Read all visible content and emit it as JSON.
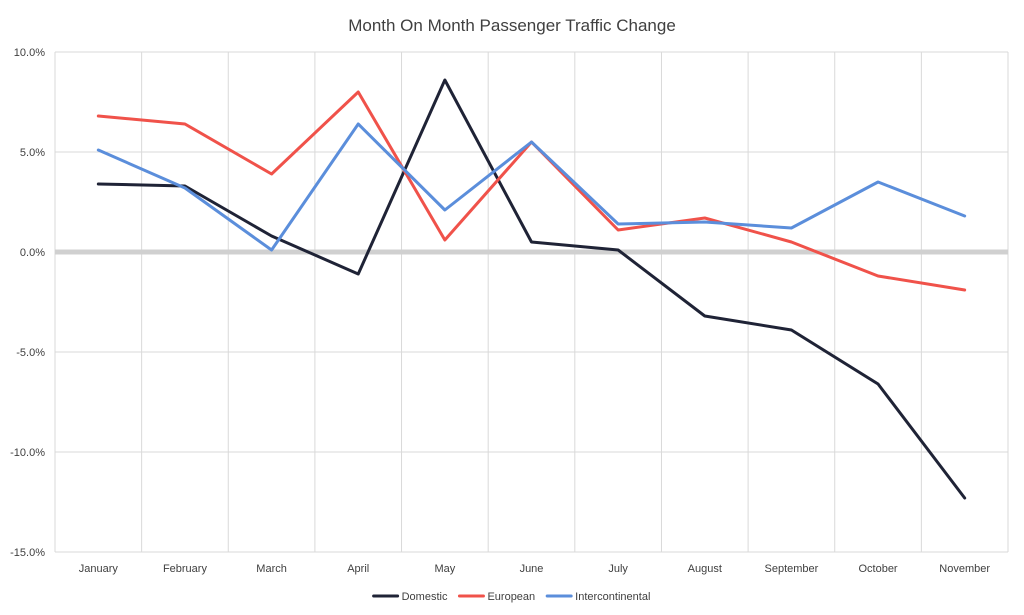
{
  "chart_data": {
    "type": "line",
    "title": "Month On Month Passenger Traffic Change",
    "xlabel": "",
    "ylabel": "",
    "categories": [
      "January",
      "February",
      "March",
      "April",
      "May",
      "June",
      "July",
      "August",
      "September",
      "October",
      "November"
    ],
    "yticks": [
      10,
      5,
      0,
      -5,
      -10,
      -15
    ],
    "ytick_labels": [
      "10.0%",
      "5.0%",
      "0.0%",
      "-5.0%",
      "-10.0%",
      "-15.0%"
    ],
    "ylim": [
      -15,
      10
    ],
    "grid": true,
    "legend_position": "bottom",
    "series": [
      {
        "name": "Domestic",
        "color": "#1f2336",
        "values": [
          3.4,
          3.3,
          0.8,
          -1.1,
          8.6,
          0.5,
          0.1,
          -3.2,
          -3.9,
          -6.6,
          -12.3
        ]
      },
      {
        "name": "European",
        "color": "#f0524a",
        "values": [
          6.8,
          6.4,
          3.9,
          8.0,
          0.6,
          5.5,
          1.1,
          1.7,
          0.5,
          -1.2,
          -1.9
        ]
      },
      {
        "name": "Intercontinental",
        "color": "#5b8edb",
        "values": [
          5.1,
          3.2,
          0.1,
          6.4,
          2.1,
          5.5,
          1.4,
          1.5,
          1.2,
          3.5,
          1.8
        ]
      }
    ]
  }
}
